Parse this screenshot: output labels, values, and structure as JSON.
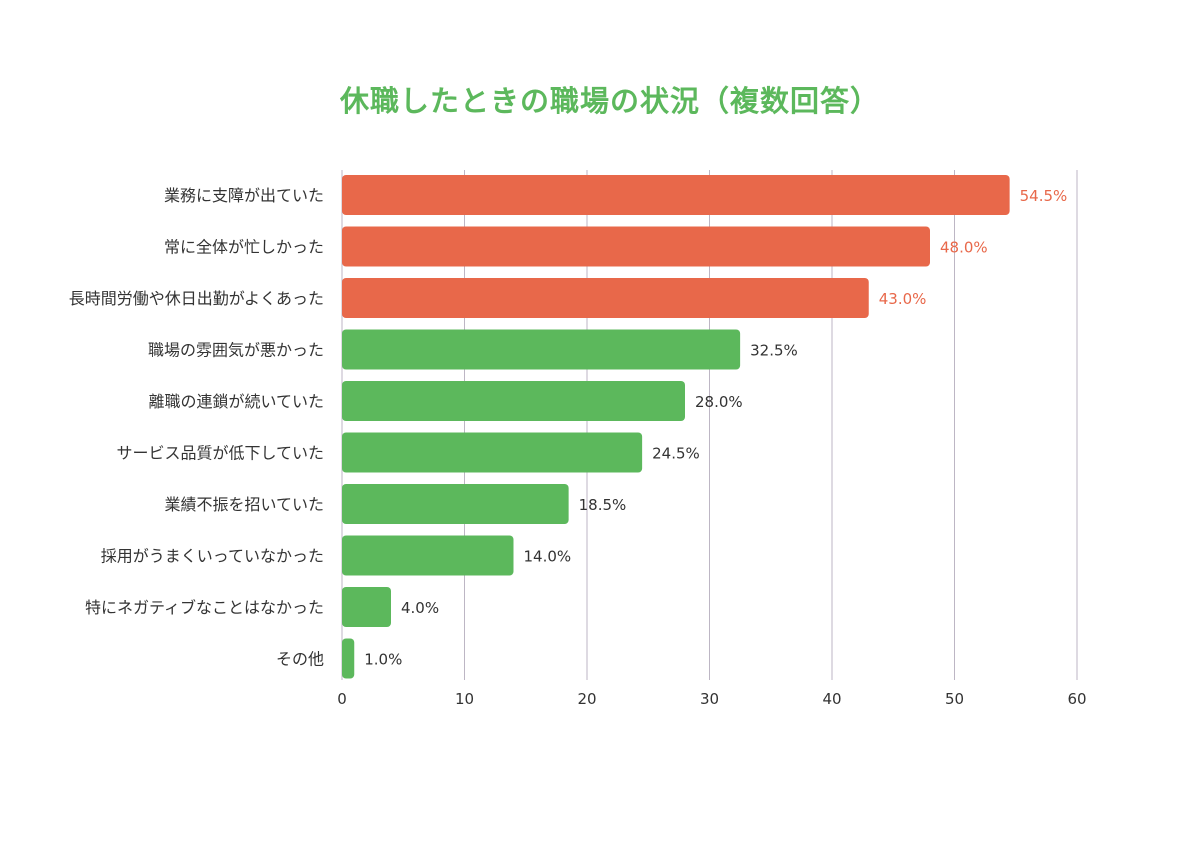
{
  "chart_data": {
    "type": "bar",
    "orientation": "horizontal",
    "title": "休職したときの職場の状況（複数回答）",
    "xlabel": "",
    "ylabel": "",
    "xlim": [
      0,
      60
    ],
    "ticks": [
      0,
      10,
      20,
      30,
      40,
      50,
      60
    ],
    "grid": true,
    "categories": [
      "業務に支障が出ていた",
      "常に全体が忙しかった",
      "長時間労働や休日出勤がよくあった",
      "職場の雰囲気が悪かった",
      "離職の連鎖が続いていた",
      "サービス品質が低下していた",
      "業績不振を招いていた",
      "採用がうまくいっていなかった",
      "特にネガティブなことはなかった",
      "その他"
    ],
    "values": [
      54.5,
      48.0,
      43.0,
      32.5,
      28.0,
      24.5,
      18.5,
      14.0,
      4.0,
      1.0
    ],
    "value_labels": [
      "54.5%",
      "48.0%",
      "43.0%",
      "32.5%",
      "28.0%",
      "24.5%",
      "18.5%",
      "14.0%",
      "4.0%",
      "1.0%"
    ],
    "highlight_count": 3,
    "colors": {
      "highlight": "#e8684a",
      "normal": "#5cb85c",
      "title": "#5cb85c",
      "highlight_label": "#e8684a",
      "normal_label": "#333333",
      "grid": "#bdb6c4"
    }
  }
}
